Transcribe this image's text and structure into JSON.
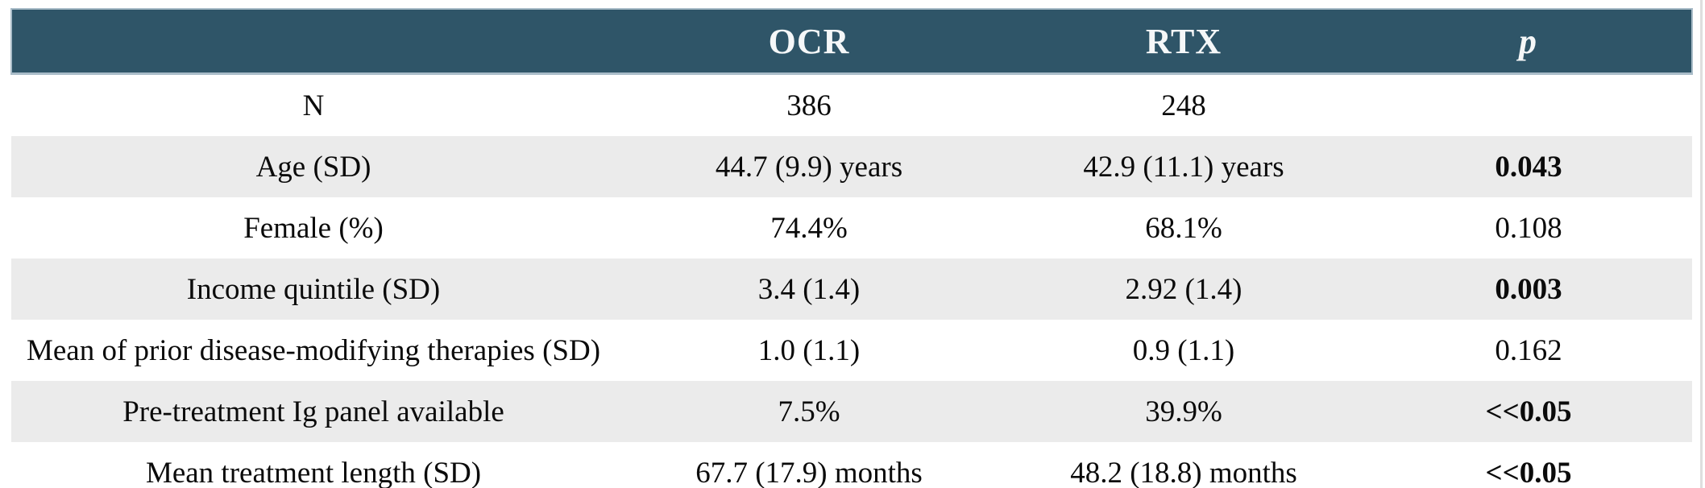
{
  "page": {
    "background": "#FFFFFF",
    "right_edge_line_color": "#DEDEDE"
  },
  "table": {
    "style": {
      "header_bg": "#2F5568",
      "header_text": "#F5F7F8",
      "header_border": "#A9BCC8",
      "stripe_bg": "#EBEBEB",
      "text_color": "#0B0B0B",
      "page_bg": "#FFFFFF",
      "edge_line": "#DEDEDE"
    },
    "headers": [
      "",
      "OCR",
      "RTX",
      "p"
    ],
    "rows": [
      {
        "label": "N",
        "ocr": "386",
        "rtx": "248",
        "p": "",
        "p_bold": false,
        "shaded": false
      },
      {
        "label": "Age (SD)",
        "ocr": "44.7 (9.9) years",
        "rtx": "42.9 (11.1) years",
        "p": "0.043",
        "p_bold": true,
        "shaded": true
      },
      {
        "label": "Female (%)",
        "ocr": "74.4%",
        "rtx": "68.1%",
        "p": "0.108",
        "p_bold": false,
        "shaded": false
      },
      {
        "label": "Income quintile (SD)",
        "ocr": "3.4 (1.4)",
        "rtx": "2.92 (1.4)",
        "p": "0.003",
        "p_bold": true,
        "shaded": true
      },
      {
        "label": "Mean of prior disease-modifying therapies (SD)",
        "ocr": "1.0 (1.1)",
        "rtx": "0.9 (1.1)",
        "p": "0.162",
        "p_bold": false,
        "shaded": false
      },
      {
        "label": "Pre-treatment Ig panel available",
        "ocr": "7.5%",
        "rtx": "39.9%",
        "p": "<<0.05",
        "p_bold": true,
        "shaded": true
      },
      {
        "label": "Mean treatment length (SD)",
        "ocr": "67.7 (17.9) months",
        "rtx": "48.2 (18.8) months",
        "p": "<<0.05",
        "p_bold": true,
        "shaded": false
      }
    ]
  }
}
